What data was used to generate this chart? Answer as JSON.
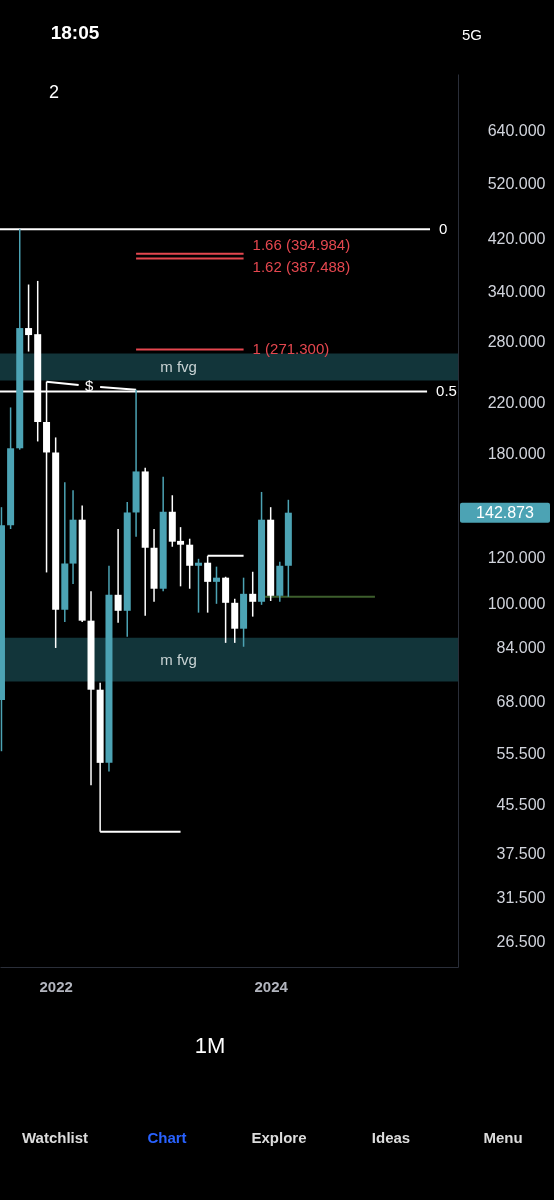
{
  "chart_data": {
    "type": "candlestick",
    "x": [
      "2021-07",
      "2021-08",
      "2021-09",
      "2021-10",
      "2021-11",
      "2021-12",
      "2022-01",
      "2022-02",
      "2022-03",
      "2022-04",
      "2022-05",
      "2022-06",
      "2022-07",
      "2022-08",
      "2022-09",
      "2022-10",
      "2022-11",
      "2022-12",
      "2023-01",
      "2023-02",
      "2023-03",
      "2023-04",
      "2023-05",
      "2023-06",
      "2023-07",
      "2023-08",
      "2023-09",
      "2023-10",
      "2023-11",
      "2023-12",
      "2024-01",
      "2024-02",
      "2024-03"
    ],
    "ohlc": [
      [
        68.5,
        146,
        56,
        136
      ],
      [
        136,
        216,
        134,
        184
      ],
      [
        184,
        435,
        183,
        295
      ],
      [
        295,
        350,
        269,
        287
      ],
      [
        288,
        355,
        189,
        204
      ],
      [
        204,
        239,
        113,
        181
      ],
      [
        181,
        192,
        84,
        97.6
      ],
      [
        97.6,
        161,
        93,
        117
      ],
      [
        117,
        156,
        108,
        139
      ],
      [
        139,
        147,
        93,
        93.5
      ],
      [
        93.5,
        105,
        49,
        71.3
      ],
      [
        71.3,
        73.3,
        40.8,
        53.5
      ],
      [
        53.5,
        116,
        51.7,
        103.5
      ],
      [
        103.5,
        134,
        92.7,
        97.2
      ],
      [
        97.2,
        149,
        87.8,
        143
      ],
      [
        143,
        231.5,
        130,
        168
      ],
      [
        168,
        170.4,
        95.3,
        124.5
      ],
      [
        124.5,
        134,
        100.7,
        106
      ],
      [
        106,
        164.5,
        105,
        143.4
      ],
      [
        143.4,
        153,
        125,
        127.5
      ],
      [
        127.9,
        135,
        107,
        126
      ],
      [
        126,
        129,
        106,
        116
      ],
      [
        116,
        119.2,
        96.5,
        117.4
      ],
      [
        117.4,
        120.6,
        96.5,
        108.9
      ],
      [
        108.9,
        115.6,
        99.9,
        110.7
      ],
      [
        110.7,
        111.1,
        85.7,
        100.3
      ],
      [
        100.3,
        101.9,
        85.7,
        90.6
      ],
      [
        90.6,
        110.7,
        84.4,
        103.9
      ],
      [
        103.9,
        113.3,
        95,
        100.7
      ],
      [
        100.7,
        155,
        99.5,
        139
      ],
      [
        139,
        146,
        101,
        103.1
      ],
      [
        103.1,
        117.8,
        100.7,
        116
      ],
      [
        116,
        150.3,
        102.7,
        142.873
      ]
    ],
    "colors": [
      "#4ca3b4",
      "#4ca3b4",
      "#4ca3b4",
      "#ffffff",
      "#ffffff",
      "#ffffff",
      "#ffffff",
      "#4ca3b4",
      "#4ca3b4",
      "#ffffff",
      "#ffffff",
      "#ffffff",
      "#4ca3b4",
      "#ffffff",
      "#4ca3b4",
      "#4ca3b4",
      "#ffffff",
      "#ffffff",
      "#4ca3b4",
      "#ffffff",
      "#ffffff",
      "#ffffff",
      "#4ca3b4",
      "#ffffff",
      "#4ca3b4",
      "#ffffff",
      "#ffffff",
      "#4ca3b4",
      "#ffffff",
      "#4ca3b4",
      "#ffffff",
      "#4ca3b4",
      "#4ca3b4"
    ],
    "series": [
      {
        "type": "line",
        "name": "0",
        "color": "#ffffff",
        "x": [
          "2021-06-26",
          "2025-06-25"
        ],
        "values": [
          435,
          435
        ]
      },
      {
        "type": "line",
        "name": "0.5",
        "color": "#ffffff",
        "x": [
          "2021-06-26",
          "2025-06-15"
        ],
        "values": [
          230,
          230
        ]
      },
      {
        "type": "line",
        "name": "1 (271.300)",
        "color": "#e5474f",
        "x": [
          "2022-10",
          "2023-10"
        ],
        "values": [
          271.3,
          271.3
        ]
      },
      {
        "type": "line",
        "name": "1.62 (387.488)",
        "color": "#e5474f",
        "x": [
          "2022-10",
          "2023-10"
        ],
        "values": [
          387.488,
          387.488
        ]
      },
      {
        "type": "line",
        "name": "1.66 (394.984)",
        "color": "#e5474f",
        "x": [
          "2022-10",
          "2023-10"
        ],
        "values": [
          394.984,
          394.984
        ]
      },
      {
        "type": "line",
        "color": "#ffffff",
        "x": [
          "2021-12",
          "2022-03-20",
          "2022-04-25",
          "2022-06",
          "2022-10"
        ],
        "values": [
          239,
          236,
          null,
          234,
          231.5
        ]
      },
      {
        "type": "line",
        "color": "#ffffff",
        "x": [
          "2022-06",
          "2023-03"
        ],
        "values": [
          40.8,
          40.8
        ]
      },
      {
        "type": "line",
        "color": "#ffffff",
        "x": [
          "2023-06",
          "2023-10"
        ],
        "values": [
          120.6,
          120.6
        ]
      },
      {
        "type": "line",
        "color": "#3d5e2c",
        "x": [
          "2023-12",
          "2024-12-20"
        ],
        "values": [
          102.7,
          102.7
        ]
      }
    ],
    "bands": [
      {
        "axis": "y",
        "from": 240,
        "to": 267,
        "label": "m fvg",
        "color": "#12353a"
      },
      {
        "axis": "y",
        "from": 73.6,
        "to": 87.4,
        "label": "m fvg",
        "color": "#12353a"
      }
    ],
    "annotations": [
      {
        "text": "$",
        "x": "2022-04-25",
        "y": 235
      },
      "142.873",
      "18:05",
      "5G",
      "2",
      "1M",
      "Watchlist",
      "Chart",
      "Explore",
      "Ideas",
      "Menu"
    ],
    "xlim": [
      "2021-06-26",
      "2025-09-28"
    ],
    "xticks": [
      "2022",
      "2024"
    ],
    "ylim": [
      24,
      800
    ],
    "yticks": [
      {
        "value": 26.5,
        "label": "26.500"
      },
      {
        "value": 31.5,
        "label": "31.500"
      },
      {
        "value": 37.5,
        "label": "37.500"
      },
      {
        "value": 45.5,
        "label": "45.500"
      },
      {
        "value": 55.5,
        "label": "55.500"
      },
      {
        "value": 68,
        "label": "68.000"
      },
      {
        "value": 84,
        "label": "84.000"
      },
      {
        "value": 100,
        "label": "100.000"
      },
      {
        "value": 120,
        "label": "120.000"
      },
      {
        "value": 180,
        "label": "180.000"
      },
      {
        "value": 220,
        "label": "220.000"
      },
      {
        "value": 280,
        "label": "280.000"
      },
      {
        "value": 340,
        "label": "340.000"
      },
      {
        "value": 420,
        "label": "420.000"
      },
      {
        "value": 520,
        "label": "520.000"
      },
      {
        "value": 640,
        "label": "640.000"
      }
    ],
    "log": true
  }
}
